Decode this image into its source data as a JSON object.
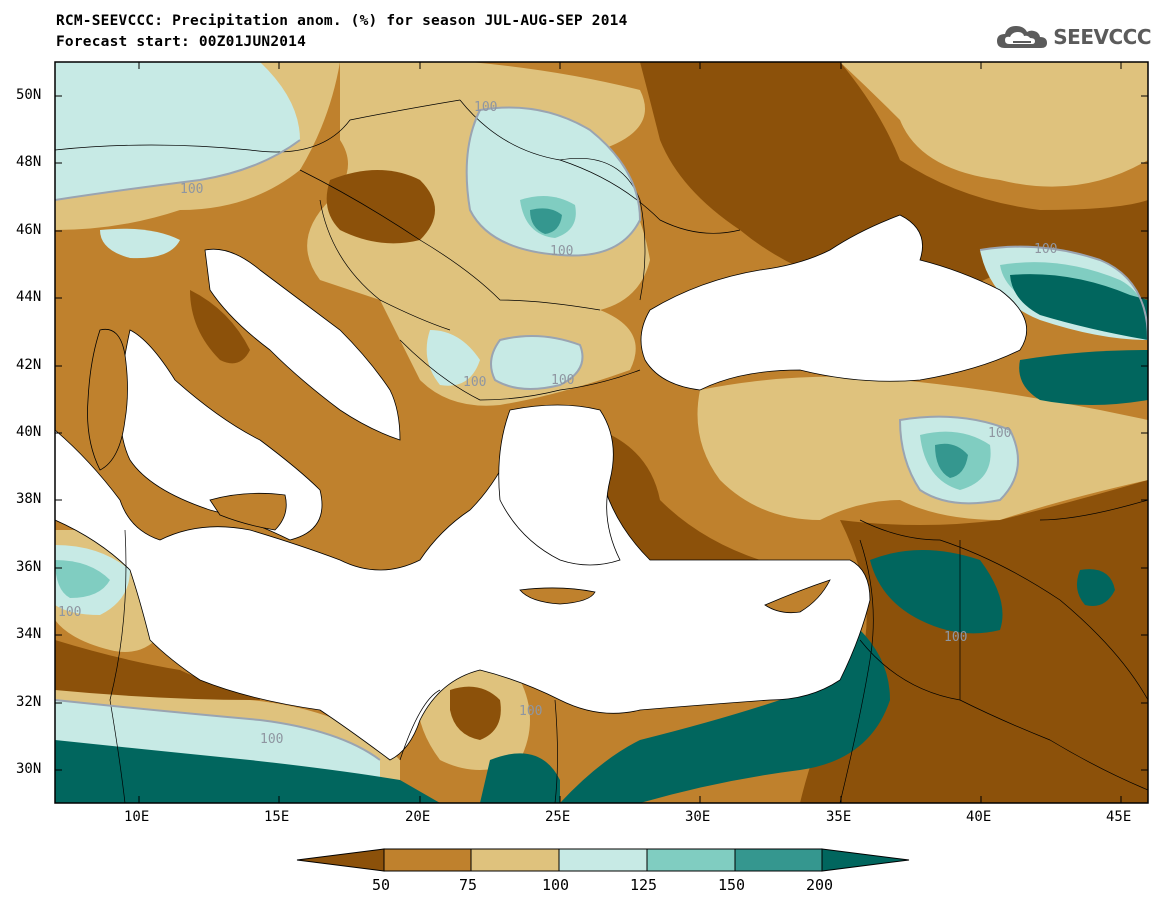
{
  "header": {
    "title_line1": "RCM-SEEVCCC: Precipitation anom. (%) for season JUL-AUG-SEP 2014",
    "title_line2": "Forecast start: 00Z01JUN2014"
  },
  "logo": {
    "text": "SEEVCCC",
    "icon": "cloud-icon",
    "color": "#5b5b5b"
  },
  "map": {
    "lon_range": [
      7,
      46
    ],
    "lat_range": [
      29,
      51
    ],
    "lat_labels": [
      "50N",
      "48N",
      "46N",
      "44N",
      "42N",
      "40N",
      "38N",
      "36N",
      "34N",
      "32N",
      "30N"
    ],
    "lon_labels": [
      "10E",
      "15E",
      "20E",
      "25E",
      "30E",
      "35E",
      "40E",
      "45E"
    ],
    "contour_labels": [
      "100",
      "100",
      "100",
      "100",
      "100",
      "100",
      "100",
      "100",
      "100",
      "100",
      "100"
    ]
  },
  "colorbar": {
    "labels": [
      "50",
      "75",
      "100",
      "125",
      "150",
      "200"
    ],
    "colors": [
      "#8c510a",
      "#bf812d",
      "#dfc27d",
      "#c7eae5",
      "#80cdc1",
      "#35978f",
      "#01665e"
    ]
  }
}
